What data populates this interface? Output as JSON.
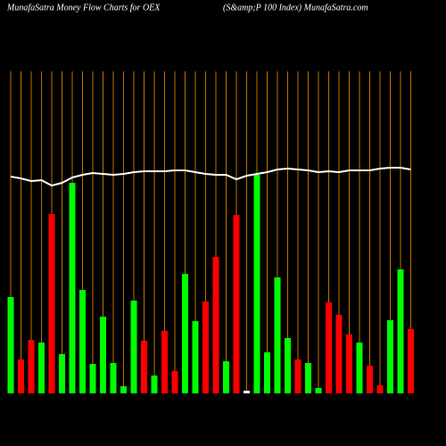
{
  "chart_data": {
    "type": "bar",
    "title": "MunafaSatra  Money Flow  Charts for OEX",
    "subtitle": "(S&amp;P 100  Index) MunafaSatra.com",
    "values": [
      108,
      38,
      60,
      57,
      201,
      44,
      236,
      116,
      33,
      86,
      34,
      8,
      104,
      59,
      20,
      70,
      25,
      134,
      81,
      103,
      153,
      36,
      200,
      3,
      245,
      46,
      130,
      62,
      38,
      34,
      6,
      102,
      88,
      66,
      57,
      31,
      9,
      82,
      139,
      72
    ],
    "colors": [
      "#00ff00",
      "#ff0000",
      "#ff0000",
      "#00ff00",
      "#ff0000",
      "#00ff00",
      "#00ff00",
      "#00ff00",
      "#00ff00",
      "#00ff00",
      "#00ff00",
      "#00ff00",
      "#00ff00",
      "#ff0000",
      "#00ff00",
      "#ff0000",
      "#ff0000",
      "#00ff00",
      "#00ff00",
      "#ff0000",
      "#ff0000",
      "#00ff00",
      "#ff0000",
      "#ffffff",
      "#00ff00",
      "#00ff00",
      "#00ff00",
      "#00ff00",
      "#ff0000",
      "#00ff00",
      "#00ff00",
      "#ff0000",
      "#ff0000",
      "#ff0000",
      "#00ff00",
      "#ff0000",
      "#ff0000",
      "#00ff00",
      "#00ff00",
      "#ff0000"
    ],
    "line": {
      "color": "#ffffff",
      "values": [
        243,
        241,
        238,
        239,
        233,
        236,
        242,
        245,
        247,
        246,
        245,
        246,
        248,
        249,
        249,
        249,
        250,
        250,
        248,
        246,
        245,
        245,
        240,
        244,
        246,
        248,
        251,
        252,
        251,
        250,
        248,
        249,
        248,
        250,
        250,
        250,
        252,
        253,
        253,
        251
      ]
    },
    "ylim": [
      0,
      260
    ],
    "grid_color": "#c07000"
  }
}
